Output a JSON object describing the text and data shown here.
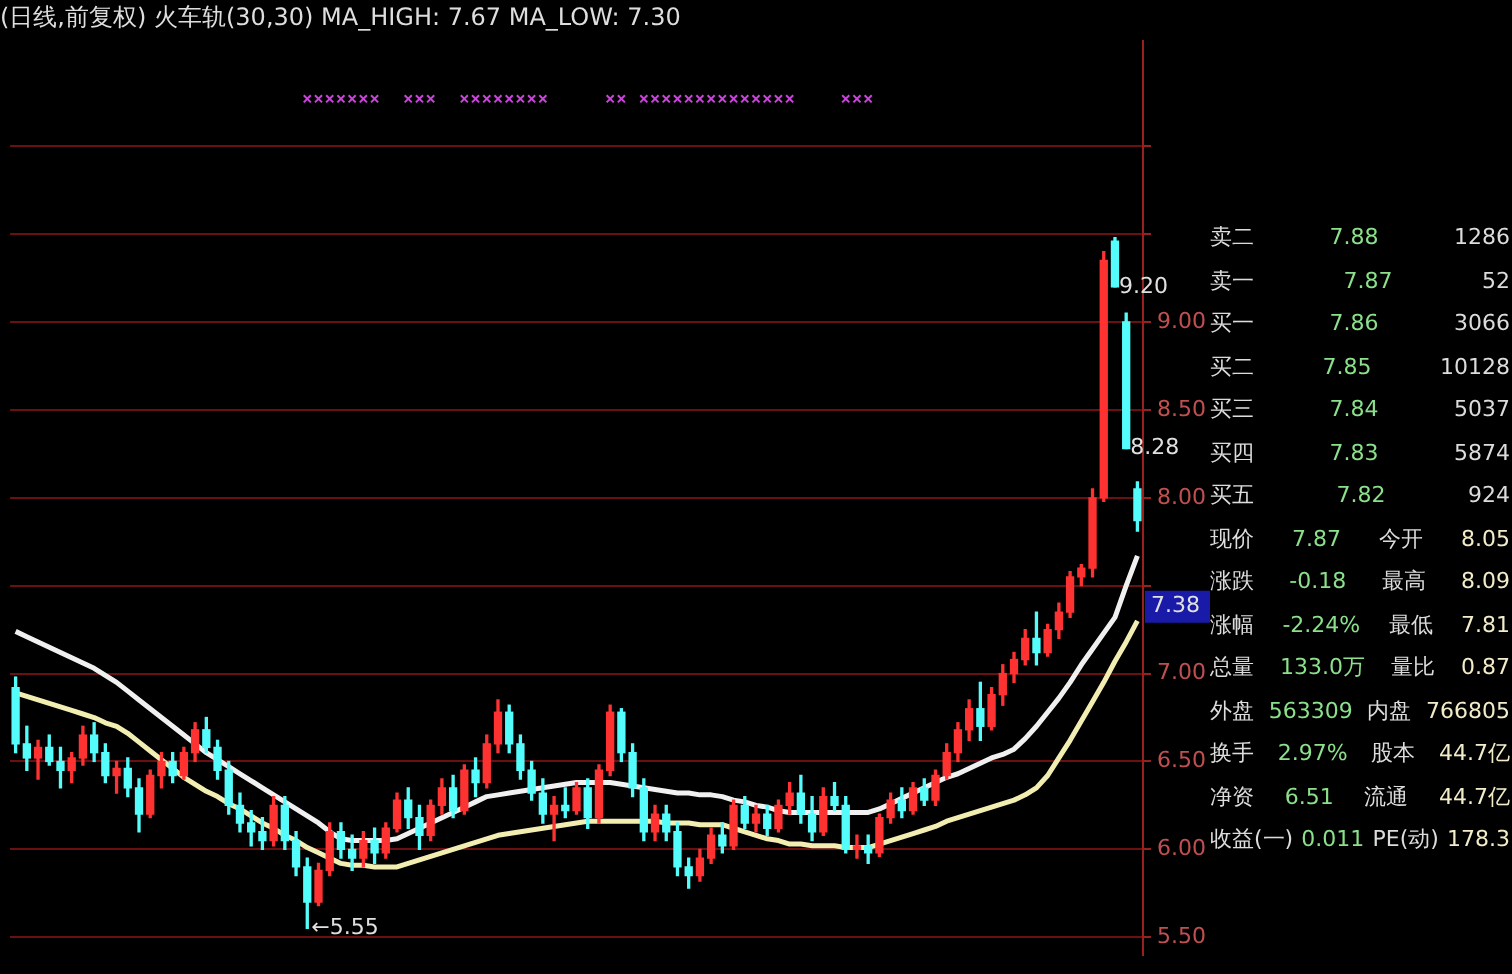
{
  "chart_data": {
    "type": "candlestick",
    "title": "(日线,前复权) 火车轨(30,30) MA_HIGH: 7.67 MA_LOW: 7.30",
    "categories": [
      null,
      null,
      null,
      null,
      null,
      null,
      null,
      null,
      null,
      null,
      null,
      null,
      null,
      null,
      null,
      null,
      null,
      null,
      null,
      null,
      null,
      null,
      null,
      null,
      null,
      null,
      null,
      null,
      null,
      null,
      null,
      null,
      null,
      null,
      null,
      null,
      null,
      null,
      null,
      null,
      null,
      null,
      null,
      null,
      null,
      null,
      null,
      null,
      null,
      null,
      null,
      null,
      null,
      null,
      null,
      null,
      null,
      null,
      null,
      null,
      null,
      null,
      null,
      null,
      null,
      null,
      null,
      null,
      null,
      null,
      null,
      null,
      null,
      null,
      null,
      null,
      null,
      null,
      null,
      null,
      null,
      null,
      null,
      null,
      null,
      null,
      null,
      null,
      null,
      null,
      null,
      null,
      null,
      null,
      null,
      null,
      null,
      null,
      null,
      null,
      null
    ],
    "ylim": [
      5.4,
      10.6
    ],
    "yticks": [
      {
        "value": 5.5,
        "label": "5.50"
      },
      {
        "value": 6,
        "label": "6.00"
      },
      {
        "value": 6.5,
        "label": "6.50"
      },
      {
        "value": 7,
        "label": "7.00"
      },
      {
        "value": 7.5,
        "label": null
      },
      {
        "value": 8,
        "label": "8.00"
      },
      {
        "value": 8.5,
        "label": "8.50"
      },
      {
        "value": 9,
        "label": "9.00"
      },
      {
        "value": 9.5,
        "label": null
      },
      {
        "value": 10,
        "label": null
      }
    ],
    "grid": "y",
    "legend": false,
    "tick_labels": "y",
    "series": [
      {
        "type": "line",
        "color": "#f0f0f0",
        "line_style": "solid",
        "marker": "none",
        "values": [
          7.24,
          7.21,
          7.18,
          7.15,
          7.12,
          7.09,
          7.06,
          7.03,
          6.99,
          6.95,
          6.9,
          6.85,
          6.8,
          6.75,
          6.7,
          6.65,
          6.6,
          6.55,
          6.51,
          6.47,
          6.43,
          6.39,
          6.35,
          6.31,
          6.27,
          6.23,
          6.19,
          6.15,
          6.1,
          6.06,
          6.05,
          6.05,
          6.05,
          6.05,
          6.06,
          6.09,
          6.12,
          6.15,
          6.18,
          6.21,
          6.24,
          6.27,
          6.3,
          6.31,
          6.32,
          6.33,
          6.34,
          6.35,
          6.36,
          6.37,
          6.38,
          6.38,
          6.38,
          6.38,
          6.37,
          6.36,
          6.35,
          6.34,
          6.33,
          6.32,
          6.32,
          6.31,
          6.31,
          6.3,
          6.28,
          6.27,
          6.25,
          6.24,
          6.22,
          6.21,
          6.21,
          6.21,
          6.21,
          6.21,
          6.21,
          6.21,
          6.21,
          6.23,
          6.26,
          6.29,
          6.32,
          6.35,
          6.38,
          6.41,
          6.43,
          6.46,
          6.49,
          6.52,
          6.54,
          6.57,
          6.63,
          6.7,
          6.78,
          6.86,
          6.95,
          7.05,
          7.14,
          7.23,
          7.32,
          7.5,
          7.67
        ]
      },
      {
        "type": "line",
        "color": "#f2edb0",
        "line_style": "solid",
        "marker": "none",
        "values": [
          6.89,
          6.87,
          6.85,
          6.83,
          6.81,
          6.79,
          6.77,
          6.75,
          6.72,
          6.7,
          6.66,
          6.61,
          6.56,
          6.51,
          6.46,
          6.41,
          6.37,
          6.33,
          6.3,
          6.26,
          6.23,
          6.19,
          6.15,
          6.12,
          6.08,
          6.05,
          6.01,
          5.98,
          5.95,
          5.92,
          5.91,
          5.91,
          5.9,
          5.9,
          5.9,
          5.92,
          5.94,
          5.96,
          5.98,
          6.0,
          6.02,
          6.04,
          6.06,
          6.08,
          6.09,
          6.1,
          6.11,
          6.12,
          6.13,
          6.14,
          6.15,
          6.16,
          6.16,
          6.16,
          6.16,
          6.16,
          6.16,
          6.16,
          6.15,
          6.15,
          6.15,
          6.14,
          6.14,
          6.14,
          6.12,
          6.1,
          6.08,
          6.06,
          6.05,
          6.03,
          6.03,
          6.02,
          6.02,
          6.02,
          6.01,
          6.01,
          6.01,
          6.03,
          6.05,
          6.07,
          6.09,
          6.11,
          6.13,
          6.16,
          6.18,
          6.2,
          6.22,
          6.24,
          6.26,
          6.28,
          6.31,
          6.35,
          6.42,
          6.52,
          6.62,
          6.73,
          6.84,
          6.95,
          7.07,
          7.18,
          7.3
        ]
      },
      {
        "type": "scatter",
        "color": "#cc44dd",
        "marker": "cross",
        "values": [
          null,
          null,
          null,
          null,
          null,
          null,
          null,
          null,
          null,
          null,
          null,
          null,
          null,
          null,
          null,
          null,
          null,
          null,
          null,
          null,
          null,
          null,
          null,
          null,
          null,
          null,
          10.27,
          10.27,
          10.27,
          10.27,
          10.27,
          10.27,
          10.27,
          null,
          null,
          10.27,
          10.27,
          10.27,
          null,
          null,
          10.27,
          10.27,
          10.27,
          10.27,
          10.27,
          10.27,
          10.27,
          10.27,
          null,
          null,
          null,
          null,
          null,
          10.27,
          10.27,
          null,
          10.27,
          10.27,
          10.27,
          10.27,
          10.27,
          10.27,
          10.27,
          10.27,
          10.27,
          10.27,
          10.27,
          10.27,
          10.27,
          10.27,
          null,
          null,
          null,
          null,
          10.27,
          10.27,
          10.27,
          null,
          null,
          null,
          null,
          null,
          null,
          null,
          null,
          null,
          null,
          null,
          null,
          null,
          null,
          null,
          null,
          null,
          null,
          null,
          null,
          null,
          null,
          null,
          null
        ]
      },
      {
        "ohlc": [
          [
            6.92,
            6.98,
            6.55,
            6.6
          ],
          [
            6.6,
            6.7,
            6.45,
            6.52
          ],
          [
            6.52,
            6.62,
            6.4,
            6.58
          ],
          [
            6.58,
            6.65,
            6.48,
            6.5
          ],
          [
            6.5,
            6.58,
            6.35,
            6.45
          ],
          [
            6.45,
            6.55,
            6.38,
            6.52
          ],
          [
            6.52,
            6.7,
            6.48,
            6.65
          ],
          [
            6.65,
            6.72,
            6.5,
            6.55
          ],
          [
            6.55,
            6.6,
            6.38,
            6.42
          ],
          [
            6.42,
            6.5,
            6.32,
            6.46
          ],
          [
            6.46,
            6.52,
            6.3,
            6.35
          ],
          [
            6.35,
            6.4,
            6.1,
            6.2
          ],
          [
            6.2,
            6.45,
            6.18,
            6.42
          ],
          [
            6.42,
            6.55,
            6.35,
            6.5
          ],
          [
            6.5,
            6.55,
            6.38,
            6.42
          ],
          [
            6.42,
            6.58,
            6.4,
            6.55
          ],
          [
            6.55,
            6.72,
            6.5,
            6.68
          ],
          [
            6.68,
            6.75,
            6.55,
            6.58
          ],
          [
            6.58,
            6.62,
            6.4,
            6.45
          ],
          [
            6.45,
            6.5,
            6.2,
            6.25
          ],
          [
            6.25,
            6.32,
            6.1,
            6.15
          ],
          [
            6.15,
            6.22,
            6.02,
            6.1
          ],
          [
            6.1,
            6.18,
            6.0,
            6.05
          ],
          [
            6.05,
            6.3,
            6.02,
            6.25
          ],
          [
            6.25,
            6.3,
            6.0,
            6.05
          ],
          [
            6.05,
            6.1,
            5.85,
            5.9
          ],
          [
            5.9,
            5.95,
            5.55,
            5.7
          ],
          [
            5.7,
            5.92,
            5.68,
            5.88
          ],
          [
            5.88,
            6.15,
            5.85,
            6.1
          ],
          [
            6.1,
            6.15,
            5.95,
            6.0
          ],
          [
            6.0,
            6.08,
            5.88,
            5.95
          ],
          [
            5.95,
            6.1,
            5.9,
            6.05
          ],
          [
            6.05,
            6.12,
            5.92,
            5.98
          ],
          [
            5.98,
            6.15,
            5.95,
            6.12
          ],
          [
            6.12,
            6.32,
            6.1,
            6.28
          ],
          [
            6.28,
            6.35,
            6.12,
            6.18
          ],
          [
            6.18,
            6.25,
            6.0,
            6.08
          ],
          [
            6.08,
            6.28,
            6.05,
            6.25
          ],
          [
            6.25,
            6.4,
            6.2,
            6.35
          ],
          [
            6.35,
            6.42,
            6.18,
            6.22
          ],
          [
            6.22,
            6.48,
            6.2,
            6.45
          ],
          [
            6.45,
            6.52,
            6.3,
            6.38
          ],
          [
            6.38,
            6.65,
            6.35,
            6.6
          ],
          [
            6.6,
            6.85,
            6.55,
            6.78
          ],
          [
            6.78,
            6.82,
            6.55,
            6.6
          ],
          [
            6.6,
            6.65,
            6.4,
            6.45
          ],
          [
            6.45,
            6.5,
            6.28,
            6.32
          ],
          [
            6.32,
            6.4,
            6.15,
            6.2
          ],
          [
            6.2,
            6.3,
            6.05,
            6.25
          ],
          [
            6.25,
            6.35,
            6.18,
            6.22
          ],
          [
            6.22,
            6.38,
            6.2,
            6.35
          ],
          [
            6.35,
            6.4,
            6.12,
            6.18
          ],
          [
            6.18,
            6.48,
            6.15,
            6.45
          ],
          [
            6.45,
            6.82,
            6.42,
            6.78
          ],
          [
            6.78,
            6.8,
            6.5,
            6.55
          ],
          [
            6.55,
            6.6,
            6.3,
            6.35
          ],
          [
            6.35,
            6.4,
            6.05,
            6.1
          ],
          [
            6.1,
            6.25,
            6.05,
            6.2
          ],
          [
            6.2,
            6.25,
            6.05,
            6.1
          ],
          [
            6.1,
            6.15,
            5.85,
            5.9
          ],
          [
            5.9,
            5.95,
            5.78,
            5.85
          ],
          [
            5.85,
            6.0,
            5.82,
            5.95
          ],
          [
            5.95,
            6.12,
            5.92,
            6.08
          ],
          [
            6.08,
            6.15,
            5.98,
            6.02
          ],
          [
            6.02,
            6.28,
            6.0,
            6.25
          ],
          [
            6.25,
            6.3,
            6.12,
            6.15
          ],
          [
            6.15,
            6.25,
            6.1,
            6.2
          ],
          [
            6.2,
            6.25,
            6.08,
            6.12
          ],
          [
            6.12,
            6.28,
            6.1,
            6.25
          ],
          [
            6.25,
            6.38,
            6.2,
            6.32
          ],
          [
            6.32,
            6.42,
            6.15,
            6.2
          ],
          [
            6.2,
            6.3,
            6.05,
            6.1
          ],
          [
            6.1,
            6.35,
            6.08,
            6.3
          ],
          [
            6.3,
            6.38,
            6.22,
            6.25
          ],
          [
            6.25,
            6.3,
            5.98,
            6.0
          ],
          [
            6.0,
            6.08,
            5.95,
            6.02
          ],
          [
            6.02,
            6.08,
            5.92,
            5.98
          ],
          [
            5.98,
            6.2,
            5.96,
            6.18
          ],
          [
            6.18,
            6.32,
            6.15,
            6.28
          ],
          [
            6.28,
            6.35,
            6.18,
            6.22
          ],
          [
            6.22,
            6.38,
            6.2,
            6.35
          ],
          [
            6.35,
            6.4,
            6.25,
            6.28
          ],
          [
            6.28,
            6.45,
            6.25,
            6.42
          ],
          [
            6.42,
            6.6,
            6.4,
            6.55
          ],
          [
            6.55,
            6.72,
            6.5,
            6.68
          ],
          [
            6.68,
            6.85,
            6.62,
            6.8
          ],
          [
            6.8,
            6.95,
            6.62,
            6.7
          ],
          [
            6.7,
            6.92,
            6.68,
            6.88
          ],
          [
            6.88,
            7.05,
            6.82,
            7.0
          ],
          [
            7.0,
            7.12,
            6.95,
            7.08
          ],
          [
            7.08,
            7.25,
            7.05,
            7.2
          ],
          [
            7.2,
            7.35,
            7.05,
            7.12
          ],
          [
            7.12,
            7.28,
            7.1,
            7.25
          ],
          [
            7.25,
            7.4,
            7.2,
            7.35
          ],
          [
            7.35,
            7.58,
            7.32,
            7.55
          ],
          [
            7.55,
            7.62,
            7.5,
            7.6
          ],
          [
            7.6,
            8.05,
            7.55,
            8.0
          ],
          [
            8.0,
            9.4,
            7.98,
            9.35
          ],
          [
            9.46,
            9.48,
            9.2,
            9.2
          ],
          [
            9.0,
            9.05,
            8.28,
            8.28
          ],
          [
            8.05,
            8.09,
            7.81,
            7.87
          ]
        ],
        "colors": [
          "#54fcfc",
          "#54fcfc",
          "#ff3232",
          "#54fcfc",
          "#54fcfc",
          "#ff3232",
          "#ff3232",
          "#54fcfc",
          "#54fcfc",
          "#ff3232",
          "#54fcfc",
          "#54fcfc",
          "#ff3232",
          "#ff3232",
          "#54fcfc",
          "#ff3232",
          "#ff3232",
          "#54fcfc",
          "#54fcfc",
          "#54fcfc",
          "#54fcfc",
          "#54fcfc",
          "#54fcfc",
          "#ff3232",
          "#54fcfc",
          "#54fcfc",
          "#54fcfc",
          "#ff3232",
          "#ff3232",
          "#54fcfc",
          "#54fcfc",
          "#ff3232",
          "#54fcfc",
          "#ff3232",
          "#ff3232",
          "#54fcfc",
          "#54fcfc",
          "#ff3232",
          "#ff3232",
          "#54fcfc",
          "#ff3232",
          "#54fcfc",
          "#ff3232",
          "#ff3232",
          "#54fcfc",
          "#54fcfc",
          "#54fcfc",
          "#54fcfc",
          "#ff3232",
          "#54fcfc",
          "#ff3232",
          "#54fcfc",
          "#ff3232",
          "#ff3232",
          "#54fcfc",
          "#54fcfc",
          "#54fcfc",
          "#ff3232",
          "#54fcfc",
          "#54fcfc",
          "#54fcfc",
          "#ff3232",
          "#ff3232",
          "#54fcfc",
          "#ff3232",
          "#54fcfc",
          "#ff3232",
          "#54fcfc",
          "#ff3232",
          "#ff3232",
          "#54fcfc",
          "#54fcfc",
          "#ff3232",
          "#54fcfc",
          "#54fcfc",
          "#ff3232",
          "#54fcfc",
          "#ff3232",
          "#ff3232",
          "#54fcfc",
          "#ff3232",
          "#54fcfc",
          "#ff3232",
          "#ff3232",
          "#ff3232",
          "#ff3232",
          "#54fcfc",
          "#ff3232",
          "#ff3232",
          "#ff3232",
          "#ff3232",
          "#54fcfc",
          "#ff3232",
          "#ff3232",
          "#ff3232",
          "#ff3232",
          "#ff3232",
          "#ff3232",
          "#54fcfc",
          "#54fcfc",
          "#54fcfc"
        ]
      }
    ],
    "annotations": [
      "←5.55",
      "9.20",
      "8.28",
      "7.38",
      "卖二 7.88 1286",
      "卖一 7.87 52",
      "买一 7.86 3066",
      "买二 7.85 10128",
      "买三 7.84 5037",
      "买四 7.83 5874",
      "买五 7.82 924",
      "现价 7.87 今开 8.05",
      "涨跌 -0.18 最高 8.09",
      "涨幅 -2.24% 最低 7.81",
      "总量 133.0万 量比 0.87",
      "外盘 563309 内盘 766805",
      "换手 2.97% 股本 44.7亿",
      "净资 6.51 流通 44.7亿",
      "收益(一) 0.011 PE(动) 178.3"
    ]
  }
}
